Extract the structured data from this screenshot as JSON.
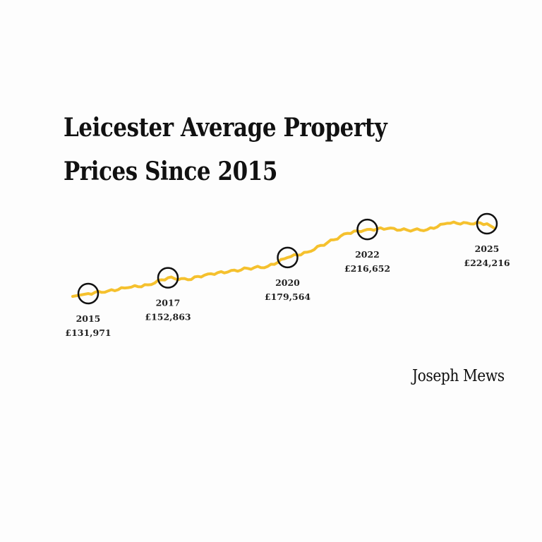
{
  "chart_data": {
    "type": "line",
    "title": "Leicester Average Property Prices Since 2015",
    "xlabel": "",
    "ylabel": "",
    "grid": false,
    "line_color": "#f5c12e",
    "marker_color": "#111111",
    "x": [
      2015,
      2015.5,
      2016,
      2016.5,
      2017,
      2017.5,
      2018,
      2018.5,
      2019,
      2019.5,
      2020,
      2020.5,
      2021,
      2021.5,
      2022,
      2022.5,
      2023,
      2023.5,
      2024,
      2024.5,
      2025
    ],
    "values": [
      131971,
      135500,
      139800,
      143500,
      152863,
      150200,
      157800,
      160500,
      165200,
      167800,
      179564,
      186800,
      199200,
      211500,
      216652,
      217800,
      215800,
      216400,
      224800,
      225200,
      224216
    ],
    "highlights": [
      {
        "year": "2015",
        "value": 131971,
        "label": "£131,971"
      },
      {
        "year": "2017",
        "value": 152863,
        "label": "£152,863"
      },
      {
        "year": "2020",
        "value": 179564,
        "label": "£179,564"
      },
      {
        "year": "2022",
        "value": 216652,
        "label": "£216,652"
      },
      {
        "year": "2025",
        "value": 224216,
        "label": "£224,216"
      }
    ]
  },
  "brand": "Joseph Mews"
}
